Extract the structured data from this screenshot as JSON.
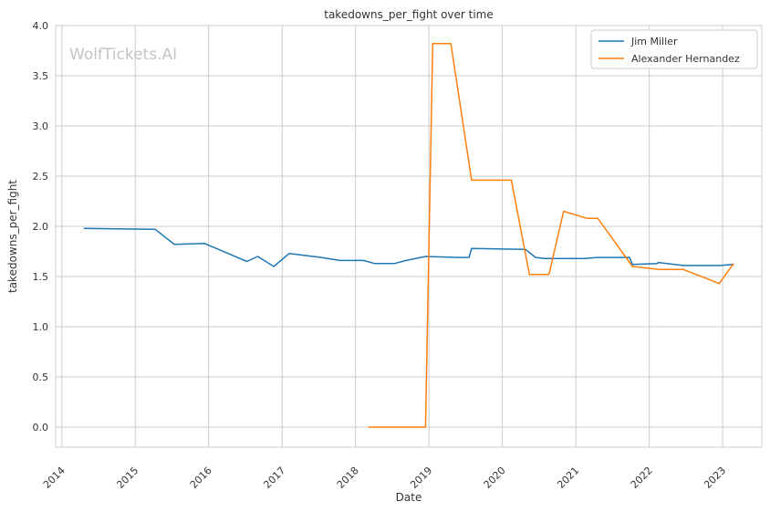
{
  "chart_data": {
    "type": "line",
    "title": "takedowns_per_fight over time",
    "xlabel": "Date",
    "ylabel": "takedowns_per_fight",
    "watermark": "WolfTickets.AI",
    "xlim": [
      "2013-12-01",
      "2023-07-15"
    ],
    "ylim": [
      -0.2,
      4.0
    ],
    "x_ticks": [
      "2014",
      "2015",
      "2016",
      "2017",
      "2018",
      "2019",
      "2020",
      "2021",
      "2022",
      "2023"
    ],
    "y_ticks": [
      "0.0",
      "0.5",
      "1.0",
      "1.5",
      "2.0",
      "2.5",
      "3.0",
      "3.5",
      "4.0"
    ],
    "grid": true,
    "legend_position": "top-right",
    "series": [
      {
        "name": "Jim Miller",
        "color": "#1f77b4",
        "points": [
          [
            "2014-04-20",
            1.98
          ],
          [
            "2015-04-10",
            1.97
          ],
          [
            "2015-07-15",
            1.82
          ],
          [
            "2015-12-10",
            1.83
          ],
          [
            "2016-02-20",
            1.77
          ],
          [
            "2016-07-10",
            1.65
          ],
          [
            "2016-09-01",
            1.7
          ],
          [
            "2016-11-20",
            1.6
          ],
          [
            "2017-02-05",
            1.73
          ],
          [
            "2017-07-15",
            1.69
          ],
          [
            "2017-10-15",
            1.66
          ],
          [
            "2018-02-10",
            1.66
          ],
          [
            "2018-04-05",
            1.63
          ],
          [
            "2018-07-15",
            1.63
          ],
          [
            "2018-09-10",
            1.66
          ],
          [
            "2018-12-15",
            1.7
          ],
          [
            "2019-06-01",
            1.69
          ],
          [
            "2019-07-20",
            1.69
          ],
          [
            "2019-08-01",
            1.78
          ],
          [
            "2020-04-25",
            1.77
          ],
          [
            "2020-06-15",
            1.69
          ],
          [
            "2020-08-01",
            1.68
          ],
          [
            "2021-02-15",
            1.68
          ],
          [
            "2021-04-15",
            1.69
          ],
          [
            "2021-09-25",
            1.69
          ],
          [
            "2021-10-10",
            1.62
          ],
          [
            "2022-02-10",
            1.63
          ],
          [
            "2022-02-15",
            1.64
          ],
          [
            "2022-06-20",
            1.61
          ],
          [
            "2022-12-20",
            1.61
          ],
          [
            "2023-02-20",
            1.62
          ]
        ]
      },
      {
        "name": "Alexander Hernandez",
        "color": "#ff7f0e",
        "points": [
          [
            "2018-03-05",
            0.0
          ],
          [
            "2018-12-15",
            0.0
          ],
          [
            "2019-01-20",
            3.82
          ],
          [
            "2019-04-20",
            3.82
          ],
          [
            "2019-08-01",
            2.46
          ],
          [
            "2020-02-15",
            2.46
          ],
          [
            "2020-05-15",
            1.52
          ],
          [
            "2020-08-20",
            1.52
          ],
          [
            "2020-11-01",
            2.15
          ],
          [
            "2021-02-25",
            2.08
          ],
          [
            "2021-04-20",
            2.08
          ],
          [
            "2021-10-10",
            1.6
          ],
          [
            "2022-02-20",
            1.57
          ],
          [
            "2022-06-20",
            1.57
          ],
          [
            "2022-12-15",
            1.43
          ],
          [
            "2023-02-25",
            1.63
          ]
        ]
      }
    ]
  }
}
